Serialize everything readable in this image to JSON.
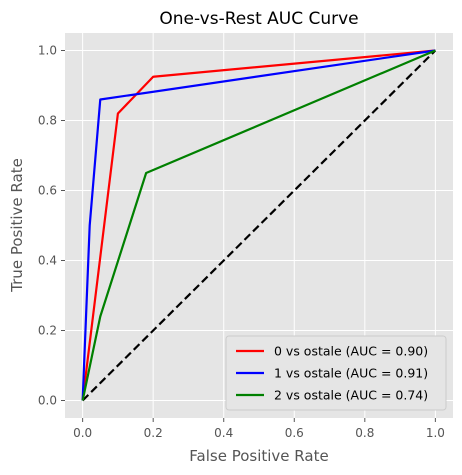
{
  "chart_data": {
    "type": "line",
    "title": "One-vs-Rest AUC Curve",
    "xlabel": "False Positive Rate",
    "ylabel": "True Positive Rate",
    "xlim": [
      -0.05,
      1.05
    ],
    "ylim": [
      -0.05,
      1.05
    ],
    "xticks": [
      0.0,
      0.2,
      0.4,
      0.6,
      0.8,
      1.0
    ],
    "yticks": [
      0.0,
      0.2,
      0.4,
      0.6,
      0.8,
      1.0
    ],
    "xtick_labels": [
      "0.0",
      "0.2",
      "0.4",
      "0.6",
      "0.8",
      "1.0"
    ],
    "ytick_labels": [
      "0.0",
      "0.2",
      "0.4",
      "0.6",
      "0.8",
      "1.0"
    ],
    "grid": true,
    "legend_position": "bottom-right",
    "series": [
      {
        "name": "0 vs ostale (AUC = 0.90)",
        "color": "#ff0000",
        "style": "solid",
        "points": [
          [
            0.0,
            0.0
          ],
          [
            0.1,
            0.82
          ],
          [
            0.2,
            0.925
          ],
          [
            1.0,
            1.0
          ]
        ]
      },
      {
        "name": "1 vs ostale (AUC = 0.91)",
        "color": "#0000ff",
        "style": "solid",
        "points": [
          [
            0.0,
            0.0
          ],
          [
            0.02,
            0.5
          ],
          [
            0.05,
            0.86
          ],
          [
            1.0,
            1.0
          ]
        ]
      },
      {
        "name": "2 vs ostale (AUC = 0.74)",
        "color": "#008000",
        "style": "solid",
        "points": [
          [
            0.0,
            0.0
          ],
          [
            0.05,
            0.24
          ],
          [
            0.18,
            0.65
          ],
          [
            1.0,
            1.0
          ]
        ]
      },
      {
        "color": "#000000",
        "style": "dashed",
        "points": [
          [
            0.0,
            0.0
          ],
          [
            1.0,
            1.0
          ]
        ]
      }
    ]
  }
}
